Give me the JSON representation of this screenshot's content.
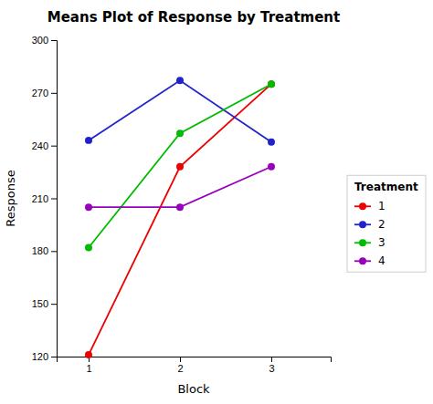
{
  "chart_data": {
    "type": "line",
    "title": "Means Plot of Response by Treatment",
    "xlabel": "Block",
    "ylabel": "Response",
    "x": [
      1,
      2,
      3
    ],
    "xlim": [
      0.65,
      3.65
    ],
    "ylim": [
      120,
      300
    ],
    "xticks": [
      1,
      2,
      3
    ],
    "yticks": [
      120,
      150,
      180,
      210,
      240,
      270,
      300
    ],
    "series": [
      {
        "name": "1",
        "color": "#EE0000",
        "values": [
          121,
          228,
          275
        ]
      },
      {
        "name": "2",
        "color": "#2222CC",
        "values": [
          243,
          277,
          242
        ]
      },
      {
        "name": "3",
        "color": "#00BB00",
        "values": [
          182,
          247,
          275
        ]
      },
      {
        "name": "4",
        "color": "#9900BB",
        "values": [
          205,
          205,
          228
        ]
      }
    ],
    "legend_title": "Treatment",
    "legend": "right",
    "grid": false,
    "marker": "circle"
  }
}
